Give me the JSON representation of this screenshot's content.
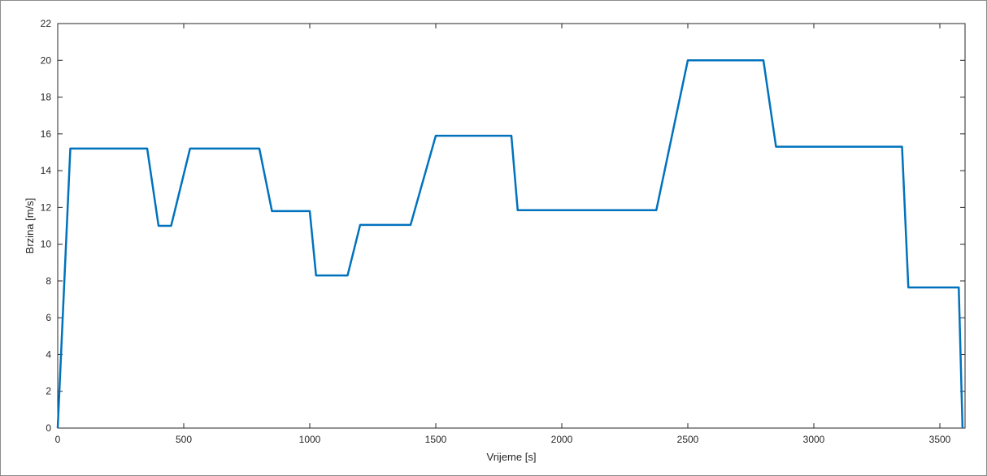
{
  "chart_data": {
    "type": "line",
    "title": "",
    "xlabel": "Vrijeme [s]",
    "ylabel": "Brzina [m/s]",
    "xlim": [
      0,
      3600
    ],
    "ylim": [
      0,
      22
    ],
    "xticks": [
      0,
      500,
      1000,
      1500,
      2000,
      2500,
      3000,
      3500
    ],
    "yticks": [
      0,
      2,
      4,
      6,
      8,
      10,
      12,
      14,
      16,
      18,
      20,
      22
    ],
    "grid": false,
    "legend": "none",
    "line_color": "#0072bd",
    "series": [
      {
        "x": [
          0,
          50,
          355,
          400,
          450,
          525,
          800,
          850,
          1000,
          1025,
          1150,
          1200,
          1400,
          1500,
          1800,
          1825,
          2375,
          2500,
          2800,
          2850,
          3350,
          3375,
          3575,
          3590
        ],
        "y": [
          0,
          15.2,
          15.2,
          11.0,
          11.0,
          15.2,
          15.2,
          11.8,
          11.8,
          8.3,
          8.3,
          11.05,
          11.05,
          15.9,
          15.9,
          11.85,
          11.85,
          20.0,
          20.0,
          15.3,
          15.3,
          7.65,
          7.65,
          0
        ]
      }
    ]
  }
}
